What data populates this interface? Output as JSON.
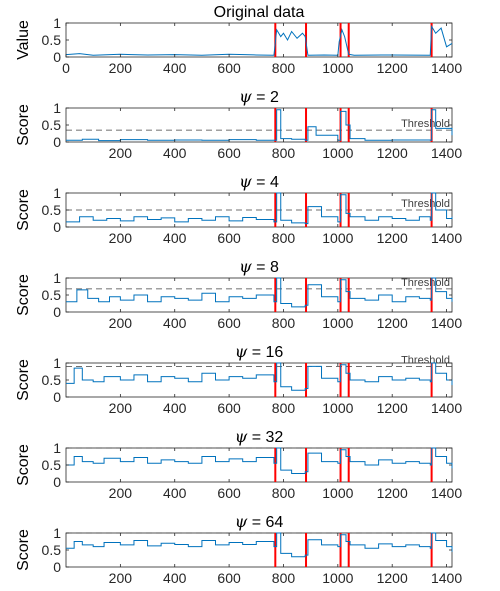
{
  "figure": {
    "threshold_label": "Threshold",
    "change_points": [
      770,
      883,
      1010,
      1040,
      1345
    ],
    "colors": {
      "series": "#0072BD",
      "change_point": "#FF0000",
      "threshold": "#404040",
      "axes": "#262626"
    }
  },
  "chart_data": [
    {
      "type": "line",
      "title": "Original data",
      "ylabel": "Value",
      "xlim": [
        0,
        1420
      ],
      "ylim": [
        0,
        1
      ],
      "xticks": [
        0,
        200,
        400,
        600,
        800,
        1000,
        1200,
        1400
      ],
      "yticks": [
        0,
        0.5,
        1
      ],
      "series": [
        {
          "x": [
            0,
            50,
            100,
            200,
            300,
            400,
            500,
            600,
            700,
            765,
            775,
            790,
            800,
            815,
            830,
            850,
            870,
            880,
            890,
            950,
            1000,
            1005,
            1015,
            1025,
            1040,
            1060,
            1200,
            1340,
            1345,
            1360,
            1380,
            1400,
            1420
          ],
          "y": [
            0.07,
            0.1,
            0.05,
            0.08,
            0.06,
            0.07,
            0.05,
            0.08,
            0.06,
            0.05,
            0.8,
            0.6,
            0.7,
            0.5,
            0.75,
            0.55,
            0.7,
            0.6,
            0.05,
            0.06,
            0.05,
            0.45,
            0.8,
            0.6,
            0.08,
            0.05,
            0.06,
            0.05,
            0.9,
            0.7,
            0.85,
            0.3,
            0.4
          ]
        }
      ]
    },
    {
      "type": "line",
      "title_prefix": "ψ",
      "title_value": "= 2",
      "ylabel": "Score",
      "threshold": 0.35,
      "xlim": [
        0,
        1420
      ],
      "ylim": [
        0,
        1
      ],
      "xticks": [
        200,
        400,
        600,
        800,
        1000,
        1200,
        1400
      ],
      "yticks": [
        0,
        0.5,
        1
      ],
      "series": [
        {
          "x": [
            0,
            60,
            120,
            200,
            300,
            400,
            500,
            600,
            700,
            765,
            775,
            790,
            830,
            880,
            890,
            920,
            1000,
            1010,
            1030,
            1045,
            1100,
            1200,
            1340,
            1345,
            1360,
            1420
          ],
          "y": [
            0.05,
            0.08,
            0.04,
            0.07,
            0.05,
            0.06,
            0.05,
            0.07,
            0.05,
            0.05,
            0.95,
            0.1,
            0.08,
            0.05,
            0.45,
            0.2,
            0.05,
            0.9,
            0.5,
            0.1,
            0.05,
            0.06,
            0.05,
            0.95,
            0.4,
            0.2
          ]
        }
      ]
    },
    {
      "type": "line",
      "title_prefix": "ψ",
      "title_value": "= 4",
      "ylabel": "Score",
      "threshold": 0.5,
      "xlim": [
        0,
        1420
      ],
      "ylim": [
        0,
        1
      ],
      "xticks": [
        200,
        400,
        600,
        800,
        1000,
        1200,
        1400
      ],
      "yticks": [
        0,
        0.5,
        1
      ],
      "series": [
        {
          "x": [
            0,
            50,
            100,
            150,
            200,
            250,
            300,
            350,
            400,
            450,
            500,
            550,
            600,
            650,
            700,
            765,
            775,
            790,
            830,
            880,
            890,
            940,
            1000,
            1010,
            1030,
            1045,
            1100,
            1150,
            1200,
            1250,
            1300,
            1340,
            1345,
            1360,
            1400,
            1420
          ],
          "y": [
            0.15,
            0.3,
            0.2,
            0.25,
            0.18,
            0.3,
            0.22,
            0.27,
            0.15,
            0.25,
            0.2,
            0.3,
            0.18,
            0.28,
            0.22,
            0.15,
            1.0,
            0.2,
            0.12,
            0.1,
            0.6,
            0.3,
            0.15,
            0.95,
            0.4,
            0.3,
            0.2,
            0.3,
            0.25,
            0.2,
            0.3,
            0.2,
            1.0,
            0.5,
            0.25,
            0.3
          ]
        }
      ]
    },
    {
      "type": "line",
      "title_prefix": "ψ",
      "title_value": "= 8",
      "ylabel": "Score",
      "threshold": 0.68,
      "xlim": [
        0,
        1420
      ],
      "ylim": [
        0,
        1
      ],
      "xticks": [
        200,
        400,
        600,
        800,
        1000,
        1200,
        1400
      ],
      "yticks": [
        0,
        0.5,
        1
      ],
      "series": [
        {
          "x": [
            0,
            40,
            80,
            120,
            160,
            200,
            250,
            300,
            350,
            400,
            450,
            500,
            550,
            600,
            650,
            700,
            765,
            775,
            790,
            830,
            880,
            890,
            940,
            1000,
            1010,
            1030,
            1045,
            1100,
            1150,
            1200,
            1250,
            1300,
            1340,
            1345,
            1360,
            1400,
            1420
          ],
          "y": [
            0.3,
            0.65,
            0.4,
            0.3,
            0.45,
            0.35,
            0.5,
            0.3,
            0.45,
            0.4,
            0.35,
            0.55,
            0.3,
            0.45,
            0.4,
            0.5,
            0.3,
            1.0,
            0.25,
            0.15,
            0.2,
            0.8,
            0.45,
            0.3,
            0.95,
            0.6,
            0.4,
            0.35,
            0.5,
            0.3,
            0.45,
            0.4,
            0.35,
            1.0,
            0.6,
            0.4,
            0.3
          ]
        }
      ]
    },
    {
      "type": "line",
      "title_prefix": "ψ",
      "title_value": "= 16",
      "ylabel": "Score",
      "threshold": 0.9,
      "xlim": [
        0,
        1420
      ],
      "ylim": [
        0,
        1
      ],
      "xticks": [
        200,
        400,
        600,
        800,
        1000,
        1200,
        1400
      ],
      "yticks": [
        0,
        0.5,
        1
      ],
      "series": [
        {
          "x": [
            0,
            30,
            60,
            100,
            140,
            200,
            250,
            300,
            350,
            400,
            450,
            500,
            550,
            600,
            650,
            700,
            765,
            775,
            790,
            830,
            880,
            890,
            940,
            1000,
            1010,
            1030,
            1045,
            1100,
            1150,
            1200,
            1250,
            1300,
            1340,
            1345,
            1360,
            1400,
            1420
          ],
          "y": [
            0.4,
            0.85,
            0.5,
            0.45,
            0.6,
            0.5,
            0.65,
            0.45,
            0.6,
            0.55,
            0.45,
            0.7,
            0.5,
            0.6,
            0.55,
            0.65,
            0.45,
            1.0,
            0.3,
            0.2,
            0.25,
            0.9,
            0.55,
            0.45,
            0.95,
            0.7,
            0.5,
            0.45,
            0.6,
            0.5,
            0.55,
            0.5,
            0.45,
            1.0,
            0.7,
            0.5,
            0.35
          ]
        }
      ]
    },
    {
      "type": "line",
      "title_prefix": "ψ",
      "title_value": "= 32",
      "ylabel": "Score",
      "threshold": 1.0,
      "xlim": [
        0,
        1420
      ],
      "ylim": [
        0,
        1
      ],
      "xticks": [
        200,
        400,
        600,
        800,
        1000,
        1200,
        1400
      ],
      "yticks": [
        0,
        0.5,
        1
      ],
      "series": [
        {
          "x": [
            0,
            30,
            60,
            100,
            140,
            200,
            250,
            300,
            350,
            400,
            450,
            500,
            550,
            600,
            650,
            700,
            765,
            775,
            790,
            830,
            880,
            890,
            940,
            1000,
            1010,
            1030,
            1045,
            1100,
            1150,
            1200,
            1250,
            1300,
            1340,
            1345,
            1360,
            1400,
            1420
          ],
          "y": [
            0.5,
            0.75,
            0.6,
            0.55,
            0.7,
            0.6,
            0.72,
            0.55,
            0.65,
            0.6,
            0.55,
            0.75,
            0.6,
            0.68,
            0.6,
            0.72,
            0.55,
            1.0,
            0.35,
            0.25,
            0.3,
            0.85,
            0.6,
            0.55,
            0.95,
            0.75,
            0.6,
            0.5,
            0.65,
            0.55,
            0.6,
            0.55,
            0.5,
            1.0,
            0.75,
            0.55,
            0.4
          ]
        }
      ]
    },
    {
      "type": "line",
      "title_prefix": "ψ",
      "title_value": "= 64",
      "ylabel": "Score",
      "threshold": 1.0,
      "xlim": [
        0,
        1420
      ],
      "ylim": [
        0,
        1
      ],
      "xticks": [
        200,
        400,
        600,
        800,
        1000,
        1200,
        1400
      ],
      "yticks": [
        0,
        0.5,
        1
      ],
      "series": [
        {
          "x": [
            0,
            30,
            60,
            100,
            140,
            200,
            250,
            300,
            350,
            400,
            450,
            500,
            550,
            600,
            650,
            700,
            765,
            775,
            790,
            830,
            880,
            890,
            940,
            1000,
            1010,
            1030,
            1045,
            1100,
            1150,
            1200,
            1250,
            1300,
            1340,
            1345,
            1360,
            1400,
            1420
          ],
          "y": [
            0.55,
            0.75,
            0.65,
            0.6,
            0.72,
            0.65,
            0.78,
            0.62,
            0.7,
            0.66,
            0.6,
            0.78,
            0.65,
            0.72,
            0.66,
            0.75,
            0.6,
            1.0,
            0.4,
            0.3,
            0.35,
            0.8,
            0.65,
            0.6,
            0.95,
            0.75,
            0.65,
            0.55,
            0.68,
            0.6,
            0.65,
            0.6,
            0.55,
            1.0,
            0.78,
            0.6,
            0.45
          ]
        }
      ]
    }
  ]
}
